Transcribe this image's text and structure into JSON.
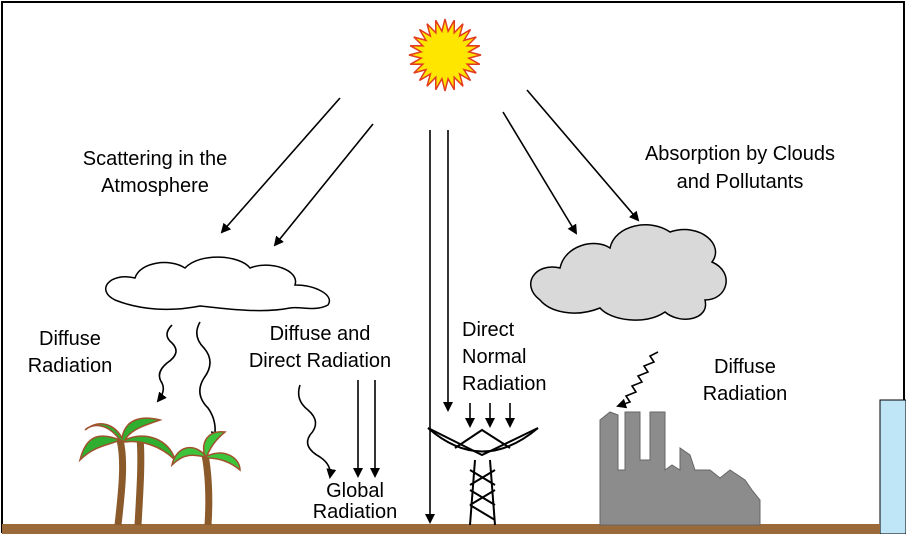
{
  "labels": {
    "scattering": [
      "Scattering in the",
      "Atmosphere"
    ],
    "absorption": [
      "Absorption by Clouds",
      "and Pollutants"
    ],
    "diffuse_left": [
      "Diffuse",
      "Radiation"
    ],
    "diffuse_direct": [
      "Diffuse and",
      "Direct Radiation"
    ],
    "direct_normal": [
      "Direct",
      "Normal",
      "Radiation"
    ],
    "diffuse_right": [
      "Diffuse",
      "Radiation"
    ],
    "global": [
      "Global",
      "Radiation"
    ]
  }
}
